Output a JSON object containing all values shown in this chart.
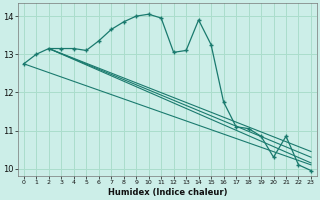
{
  "xlabel": "Humidex (Indice chaleur)",
  "bg_color": "#cceee8",
  "grid_color": "#aaddcc",
  "line_color": "#1a7a6e",
  "x_data": [
    0,
    1,
    2,
    3,
    4,
    5,
    6,
    7,
    8,
    9,
    10,
    11,
    12,
    13,
    14,
    15,
    16,
    17,
    18,
    19,
    20,
    21,
    22,
    23
  ],
  "y_data": [
    12.75,
    13.0,
    13.15,
    13.15,
    13.15,
    13.1,
    13.35,
    13.65,
    13.85,
    14.0,
    14.05,
    13.95,
    13.05,
    13.1,
    13.9,
    13.25,
    11.75,
    11.1,
    11.05,
    10.85,
    10.3,
    10.85,
    10.1,
    9.95
  ],
  "trend1_x": [
    2,
    23
  ],
  "trend1_y": [
    13.15,
    10.15
  ],
  "trend2_x": [
    2,
    23
  ],
  "trend2_y": [
    13.15,
    10.3
  ],
  "trend3_x": [
    2,
    23
  ],
  "trend3_y": [
    13.15,
    10.45
  ],
  "trend4_x": [
    0,
    23
  ],
  "trend4_y": [
    12.75,
    10.1
  ],
  "xlim": [
    -0.5,
    23.5
  ],
  "ylim": [
    9.8,
    14.35
  ],
  "yticks": [
    10,
    11,
    12,
    13,
    14
  ],
  "xticks": [
    0,
    1,
    2,
    3,
    4,
    5,
    6,
    7,
    8,
    9,
    10,
    11,
    12,
    13,
    14,
    15,
    16,
    17,
    18,
    19,
    20,
    21,
    22,
    23
  ]
}
